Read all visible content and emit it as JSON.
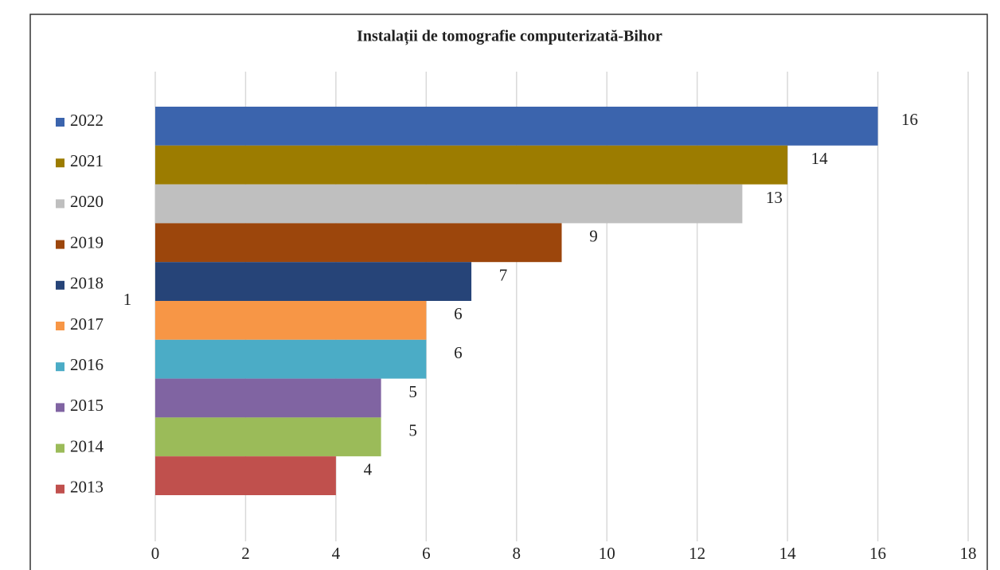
{
  "chart_data": {
    "type": "bar",
    "orientation": "horizontal",
    "title": "Instalații de tomografie computerizată-Bihor",
    "categories": [
      "1"
    ],
    "series": [
      {
        "name": "2022",
        "color": "#3b64ad",
        "values": [
          16
        ]
      },
      {
        "name": "2021",
        "color": "#9c7c00",
        "values": [
          14
        ]
      },
      {
        "name": "2020",
        "color": "#bfbfbf",
        "values": [
          13
        ]
      },
      {
        "name": "2019",
        "color": "#9c460c",
        "values": [
          9
        ]
      },
      {
        "name": "2018",
        "color": "#264478",
        "values": [
          7
        ]
      },
      {
        "name": "2017",
        "color": "#f79646",
        "values": [
          6
        ]
      },
      {
        "name": "2016",
        "color": "#4bacc6",
        "values": [
          6
        ]
      },
      {
        "name": "2015",
        "color": "#8064a2",
        "values": [
          5
        ]
      },
      {
        "name": "2014",
        "color": "#9bbb59",
        "values": [
          5
        ]
      },
      {
        "name": "2013",
        "color": "#c0504d",
        "values": [
          4
        ]
      }
    ],
    "xlim": [
      0,
      18
    ],
    "xticks": [
      0,
      2,
      4,
      6,
      8,
      10,
      12,
      14,
      16,
      18
    ],
    "grid": true,
    "legend": "left"
  }
}
